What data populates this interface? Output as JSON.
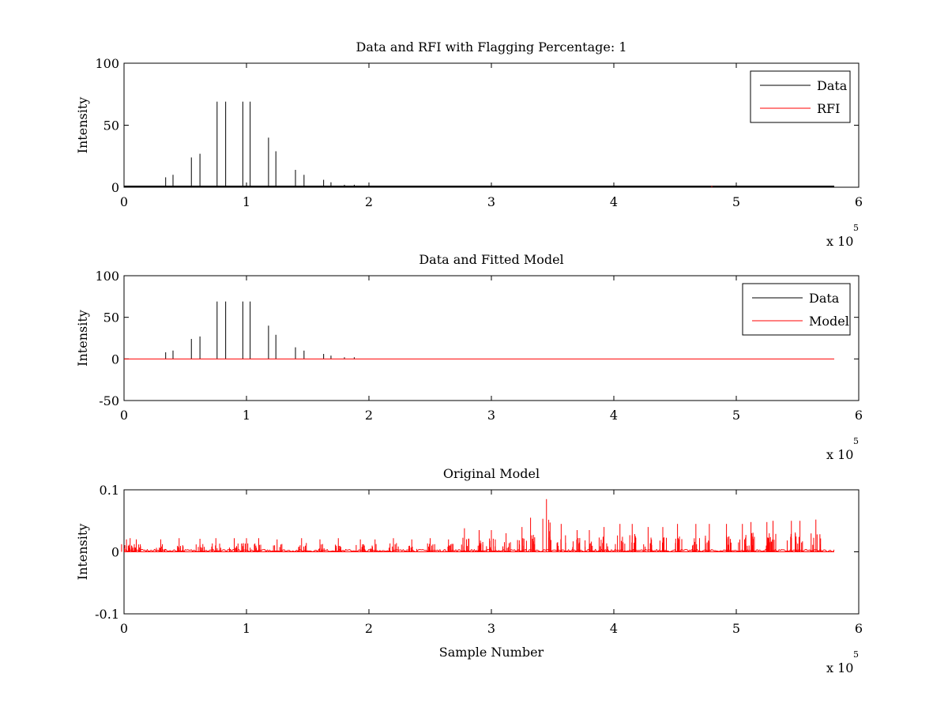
{
  "chart_data": [
    {
      "type": "line",
      "title": "Data and RFI with Flagging Percentage: 1",
      "xlabel": "",
      "ylabel": "Intensity",
      "xlim": [
        0,
        6
      ],
      "ylim": [
        0,
        100
      ],
      "x_ticks": [
        "0",
        "1",
        "2",
        "3",
        "4",
        "5",
        "6"
      ],
      "y_ticks": [
        "0",
        "50",
        "100"
      ],
      "x_multiplier": {
        "base": "x 10",
        "exponent": "5"
      },
      "legend_position": "top-right",
      "series": [
        {
          "name": "Data",
          "color": "#000000",
          "x": [
            0.0,
            0.34,
            0.4,
            0.55,
            0.62,
            0.76,
            0.83,
            0.97,
            1.03,
            1.18,
            1.24,
            1.4,
            1.47,
            1.63,
            1.69,
            1.8,
            1.88,
            2.0,
            2.2,
            2.5,
            3.0,
            3.5,
            4.0,
            4.5,
            5.0,
            5.5,
            5.78
          ],
          "y": [
            1,
            8,
            10,
            24,
            27,
            69,
            69,
            69,
            69,
            40,
            29,
            14,
            10,
            6,
            4,
            2,
            2,
            2,
            1,
            1,
            1,
            1,
            1,
            1,
            1,
            1,
            1
          ]
        },
        {
          "name": "RFI",
          "color": "#ff0000",
          "x": [
            4.8
          ],
          "y": [
            1
          ]
        }
      ]
    },
    {
      "type": "line",
      "title": "Data and Fitted Model",
      "xlabel": "",
      "ylabel": "Intensity",
      "xlim": [
        0,
        6
      ],
      "ylim": [
        -50,
        100
      ],
      "x_ticks": [
        "0",
        "1",
        "2",
        "3",
        "4",
        "5",
        "6"
      ],
      "y_ticks": [
        "-50",
        "0",
        "50",
        "100"
      ],
      "x_multiplier": {
        "base": "x 10",
        "exponent": "5"
      },
      "legend_position": "top-right",
      "series": [
        {
          "name": "Data",
          "color": "#000000",
          "x": [
            0.34,
            0.4,
            0.55,
            0.62,
            0.76,
            0.83,
            0.97,
            1.03,
            1.18,
            1.24,
            1.4,
            1.47,
            1.63,
            1.69,
            1.8,
            1.88
          ],
          "y": [
            8,
            10,
            24,
            27,
            69,
            69,
            69,
            69,
            40,
            29,
            14,
            10,
            6,
            4,
            2,
            2
          ]
        },
        {
          "name": "Model",
          "color": "#ff0000",
          "x": [
            0.0,
            5.8
          ],
          "y": [
            0,
            0
          ]
        }
      ]
    },
    {
      "type": "line",
      "title": "Original Model",
      "xlabel": "Sample Number",
      "ylabel": "Intensity",
      "xlim": [
        0,
        6
      ],
      "ylim": [
        -0.1,
        0.1
      ],
      "x_ticks": [
        "0",
        "1",
        "2",
        "3",
        "4",
        "5",
        "6"
      ],
      "y_ticks": [
        "-0.1",
        "0",
        "0.1"
      ],
      "x_multiplier": {
        "base": "x 10",
        "exponent": "5"
      },
      "series": [
        {
          "color": "#ff0000",
          "x": [
            0.02,
            0.05,
            0.1,
            0.3,
            0.45,
            0.62,
            0.75,
            0.9,
            1.0,
            1.1,
            1.25,
            1.45,
            1.6,
            1.75,
            1.93,
            2.05,
            2.2,
            2.35,
            2.5,
            2.65,
            2.78,
            2.9,
            3.0,
            3.12,
            3.25,
            3.32,
            3.45,
            3.57,
            3.7,
            3.8,
            3.92,
            4.05,
            4.15,
            4.28,
            4.4,
            4.52,
            4.67,
            4.78,
            4.92,
            5.05,
            5.12,
            5.25,
            5.3,
            5.45,
            5.52,
            5.65
          ],
          "y": [
            0.02,
            0.022,
            0.02,
            0.02,
            0.022,
            0.021,
            0.022,
            0.022,
            0.022,
            0.022,
            0.02,
            0.022,
            0.02,
            0.022,
            0.02,
            0.02,
            0.022,
            0.02,
            0.022,
            0.02,
            0.038,
            0.035,
            0.035,
            0.03,
            0.04,
            0.055,
            0.085,
            0.045,
            0.035,
            0.035,
            0.04,
            0.045,
            0.045,
            0.04,
            0.04,
            0.045,
            0.045,
            0.045,
            0.045,
            0.045,
            0.048,
            0.048,
            0.05,
            0.05,
            0.05,
            0.052
          ]
        }
      ]
    }
  ]
}
